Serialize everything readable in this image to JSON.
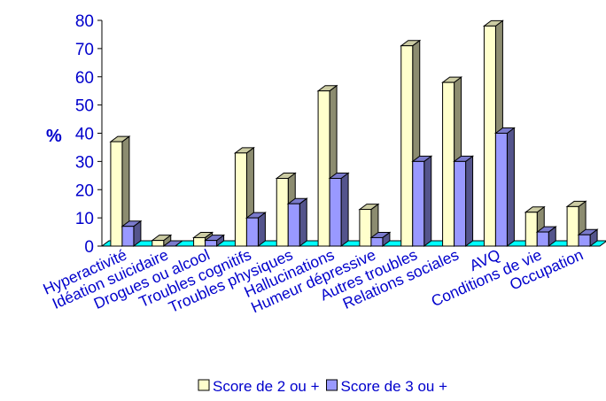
{
  "chart_data": {
    "type": "bar",
    "title": "",
    "xlabel": "",
    "ylabel": "%",
    "ylim": [
      0,
      80
    ],
    "yticks": [
      0,
      10,
      20,
      30,
      40,
      50,
      60,
      70,
      80
    ],
    "categories": [
      "Hyperactivité",
      "Idéation suicidaire",
      "Drogues ou alcool",
      "Troubles cognitifs",
      "Troubles physiques",
      "Hallucinations",
      "Humeur dépressive",
      "Autres troubles",
      "Relations sociales",
      "AVQ",
      "Conditions de vie",
      "Occupation"
    ],
    "series": [
      {
        "name": "Score de 2 ou +",
        "color": "#ffffcc",
        "values": [
          37,
          2,
          3,
          33,
          24,
          55,
          13,
          71,
          58,
          78,
          12,
          14
        ]
      },
      {
        "name": "Score de 3 ou +",
        "color": "#9999ff",
        "values": [
          7,
          0,
          2,
          10,
          15,
          24,
          3,
          30,
          30,
          40,
          5,
          4
        ]
      }
    ],
    "floor_color": "#00ffff",
    "grid": false,
    "legend_position": "bottom"
  }
}
